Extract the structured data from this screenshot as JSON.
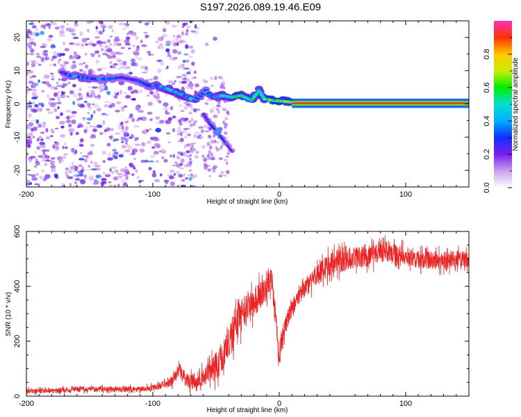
{
  "title": "S197.2026.089.19.46.E09",
  "colors": {
    "trace": "#ee2222",
    "axis": "#000000",
    "background": "#ffffff"
  },
  "chart_data": [
    {
      "type": "heatmap",
      "title": "",
      "xlabel": "Height of straight line (km)",
      "ylabel": "Frequency (Hz)",
      "xlim": [
        -200,
        150
      ],
      "ylim": [
        -25,
        25
      ],
      "xticks": [
        -200,
        -100,
        0,
        100
      ],
      "yticks": [
        -20,
        -10,
        0,
        10,
        20
      ],
      "colorbar": {
        "label": "Normalized spectral amplitude",
        "range": [
          0,
          1
        ],
        "ticks": [
          "0.0",
          "0.2",
          "0.4",
          "0.6",
          "0.8"
        ],
        "tick_values": [
          0,
          0.2,
          0.4,
          0.6,
          0.8
        ],
        "colormap": [
          "#ffffff",
          "#c9a0ee",
          "#7a1ef0",
          "#1030ff",
          "#00b0ff",
          "#00e0d0",
          "#00ee00",
          "#c8f000",
          "#ffc800",
          "#ff3000",
          "#ff30c0"
        ]
      },
      "ridge": [
        {
          "x": -172,
          "y": 9.5,
          "a": 0.3
        },
        {
          "x": -165,
          "y": 8.5,
          "a": 0.35
        },
        {
          "x": -155,
          "y": 8.0,
          "a": 0.4
        },
        {
          "x": -145,
          "y": 7.5,
          "a": 0.35
        },
        {
          "x": -135,
          "y": 7.5,
          "a": 0.35
        },
        {
          "x": -125,
          "y": 8.0,
          "a": 0.3
        },
        {
          "x": -112,
          "y": 7.0,
          "a": 0.3
        },
        {
          "x": -103,
          "y": 5.5,
          "a": 0.35
        },
        {
          "x": -95,
          "y": 5.5,
          "a": 0.4
        },
        {
          "x": -85,
          "y": 4.0,
          "a": 0.45
        },
        {
          "x": -75,
          "y": 2.5,
          "a": 0.45
        },
        {
          "x": -67,
          "y": 1.0,
          "a": 0.4
        },
        {
          "x": -58,
          "y": 4.0,
          "a": 0.35
        },
        {
          "x": -52,
          "y": 2.0,
          "a": 0.4
        },
        {
          "x": -45,
          "y": 2.5,
          "a": 0.45
        },
        {
          "x": -38,
          "y": 2.0,
          "a": 0.5
        },
        {
          "x": -30,
          "y": 2.5,
          "a": 0.55
        },
        {
          "x": -22,
          "y": 1.0,
          "a": 0.55
        },
        {
          "x": -16,
          "y": 4.0,
          "a": 0.5
        },
        {
          "x": -12,
          "y": 1.5,
          "a": 0.6
        },
        {
          "x": -5,
          "y": 1.0,
          "a": 0.65
        },
        {
          "x": 3,
          "y": 0.8,
          "a": 0.6
        },
        {
          "x": 10,
          "y": 0.5,
          "a": 0.65
        },
        {
          "x": 20,
          "y": 0.2,
          "a": 0.8
        },
        {
          "x": 40,
          "y": 0.2,
          "a": 0.95
        },
        {
          "x": 70,
          "y": 0.2,
          "a": 0.95
        },
        {
          "x": 100,
          "y": 0.2,
          "a": 0.95
        },
        {
          "x": 130,
          "y": 0.2,
          "a": 0.95
        },
        {
          "x": 150,
          "y": 0.2,
          "a": 0.95
        }
      ],
      "branch": [
        {
          "x": -60,
          "y": -3.0,
          "a": 0.3
        },
        {
          "x": -55,
          "y": -6.0,
          "a": 0.3
        },
        {
          "x": -49,
          "y": -8.5,
          "a": 0.35
        },
        {
          "x": -42,
          "y": -12.0,
          "a": 0.25
        },
        {
          "x": -36,
          "y": -15.0,
          "a": 0.25
        }
      ],
      "noise_band": {
        "x_min": -200,
        "x_max": -65,
        "density": 0.6
      }
    },
    {
      "type": "line",
      "title": "",
      "xlabel": "Height of straight line (km)",
      "ylabel": "SNR (10 * v/v)",
      "xlim": [
        -200,
        150
      ],
      "ylim": [
        0,
        600
      ],
      "xticks": [
        -200,
        -100,
        0,
        100
      ],
      "yticks": [
        0,
        200,
        400,
        600
      ],
      "series": [
        {
          "name": "SNR",
          "points": [
            [
              -200,
              18
            ],
            [
              -180,
              20
            ],
            [
              -160,
              25
            ],
            [
              -140,
              25
            ],
            [
              -120,
              25
            ],
            [
              -105,
              28
            ],
            [
              -95,
              35
            ],
            [
              -85,
              55
            ],
            [
              -78,
              100
            ],
            [
              -75,
              65
            ],
            [
              -70,
              50
            ],
            [
              -60,
              70
            ],
            [
              -50,
              110
            ],
            [
              -45,
              150
            ],
            [
              -40,
              200
            ],
            [
              -35,
              260
            ],
            [
              -30,
              290
            ],
            [
              -25,
              320
            ],
            [
              -20,
              340
            ],
            [
              -15,
              370
            ],
            [
              -10,
              390
            ],
            [
              -6,
              430
            ],
            [
              -3,
              300
            ],
            [
              -1,
              180
            ],
            [
              0,
              150
            ],
            [
              3,
              230
            ],
            [
              8,
              300
            ],
            [
              15,
              360
            ],
            [
              22,
              400
            ],
            [
              30,
              440
            ],
            [
              40,
              480
            ],
            [
              55,
              500
            ],
            [
              70,
              510
            ],
            [
              85,
              525
            ],
            [
              100,
              510
            ],
            [
              115,
              495
            ],
            [
              130,
              495
            ],
            [
              150,
              500
            ]
          ],
          "noise": [
            [
              -200,
              12
            ],
            [
              -100,
              14
            ],
            [
              -85,
              25
            ],
            [
              -60,
              45
            ],
            [
              -40,
              90
            ],
            [
              -20,
              75
            ],
            [
              -5,
              55
            ],
            [
              10,
              40
            ],
            [
              40,
              55
            ],
            [
              150,
              40
            ]
          ]
        }
      ]
    }
  ]
}
